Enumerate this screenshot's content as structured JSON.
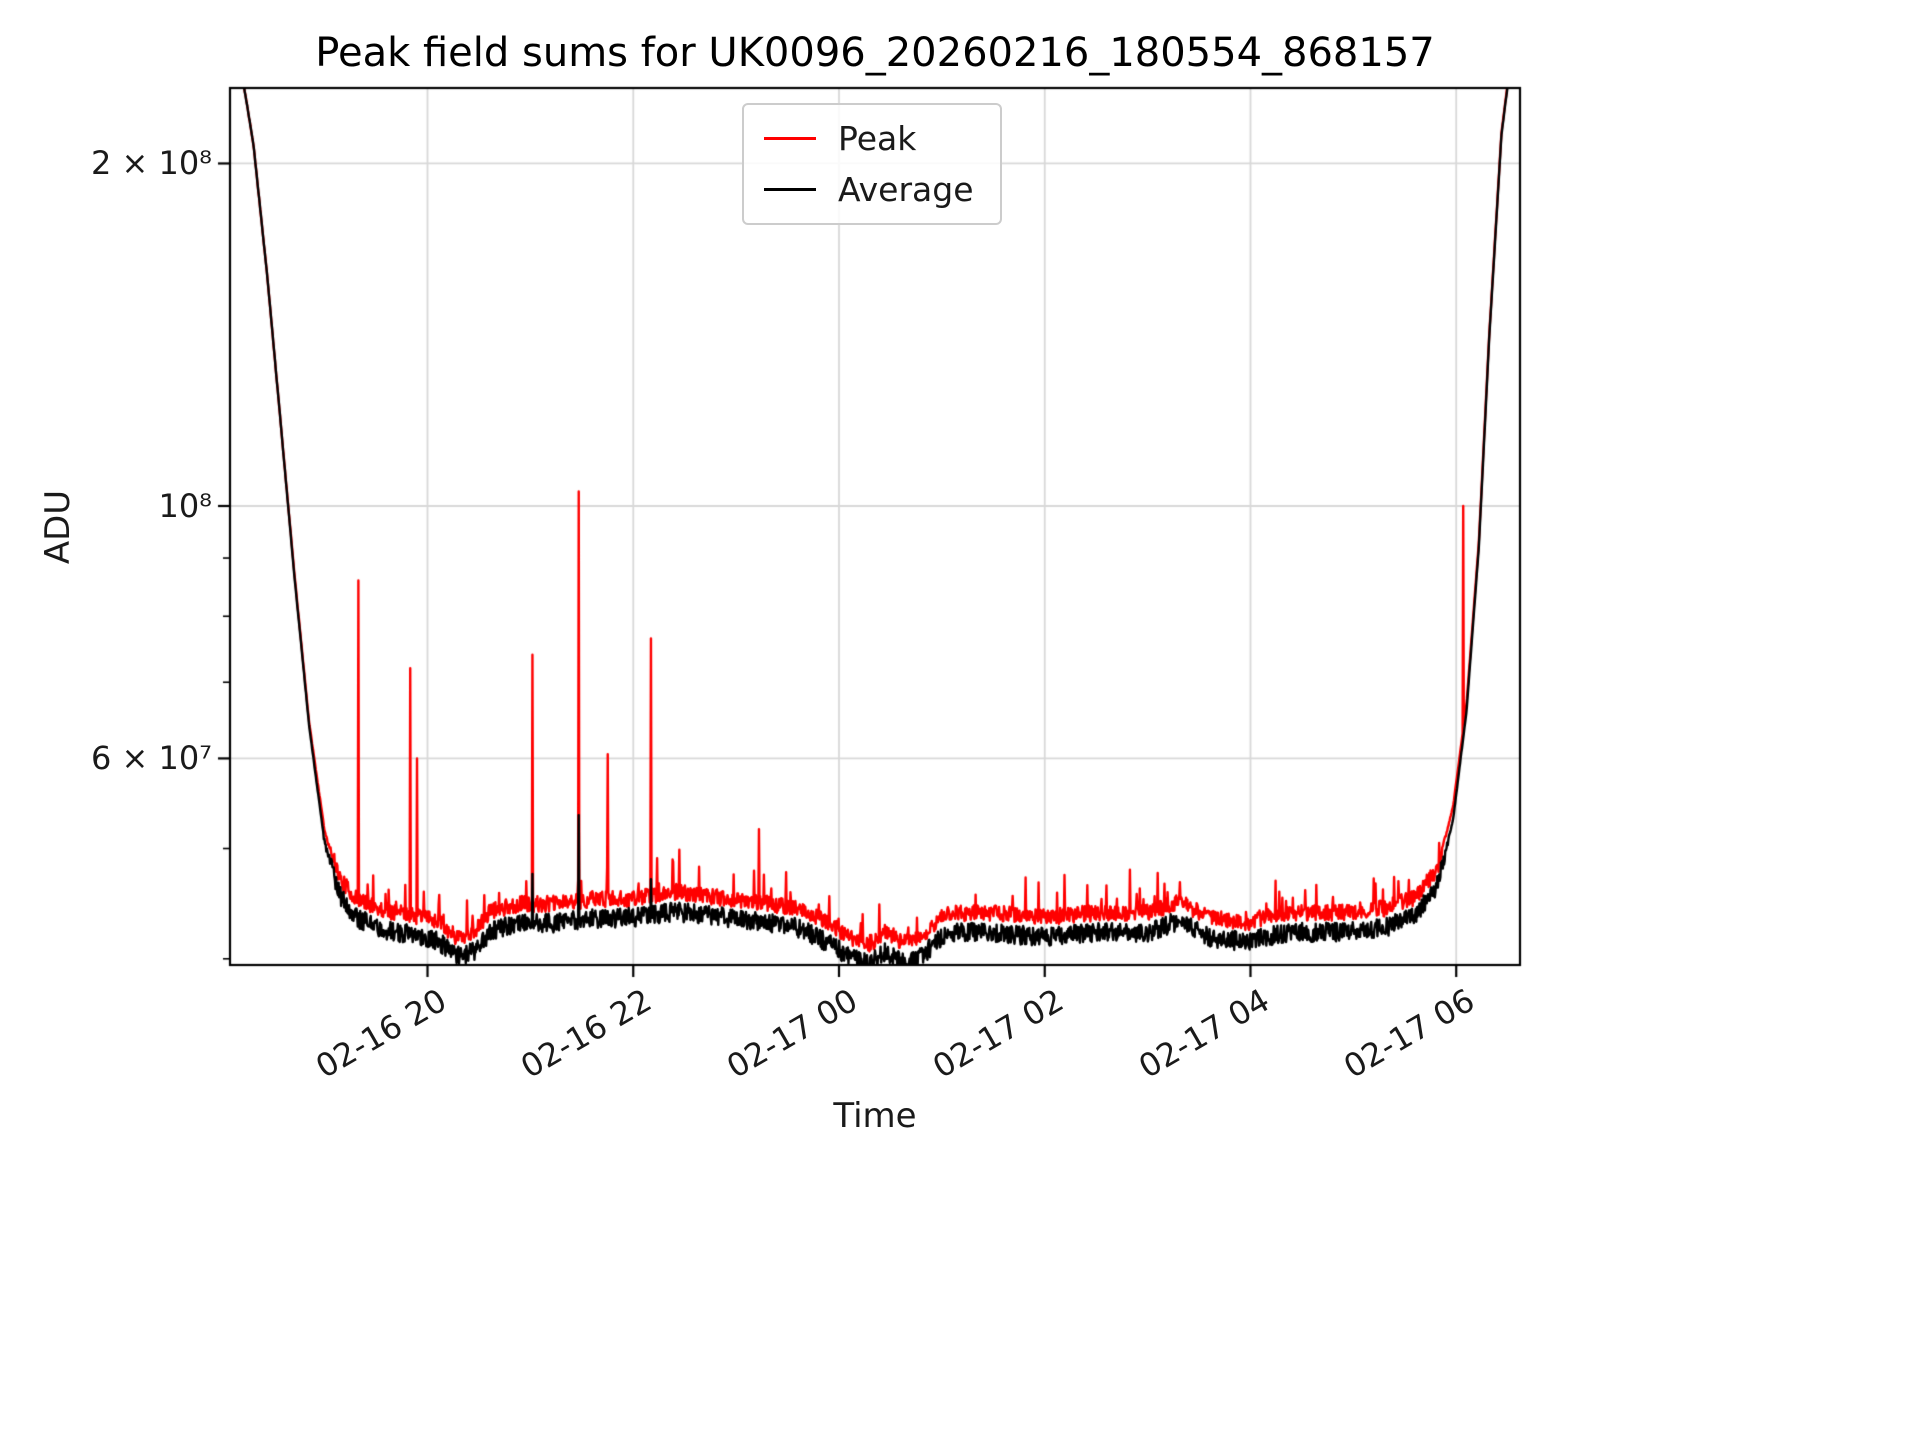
{
  "chart_data": {
    "type": "line",
    "title": "Peak field sums for UK0096_20260216_180554_868157",
    "xlabel": "Time",
    "ylabel": "ADU",
    "yscale": "log",
    "grid": true,
    "x_encoding": "hours since 02-16 00:00",
    "xlim_hours": [
      18.08,
      30.62
    ],
    "ylim": [
      39500000,
      233000000
    ],
    "xticks": [
      {
        "hours": 20,
        "label": "02-16 20"
      },
      {
        "hours": 22,
        "label": "02-16 22"
      },
      {
        "hours": 24,
        "label": "02-17 00"
      },
      {
        "hours": 26,
        "label": "02-17 02"
      },
      {
        "hours": 28,
        "label": "02-17 04"
      },
      {
        "hours": 30,
        "label": "02-17 06"
      }
    ],
    "yticks": [
      {
        "value": 60000000,
        "label": "6 × 10⁷"
      },
      {
        "value": 100000000,
        "label": "10⁸"
      },
      {
        "value": 200000000,
        "label": "2 × 10⁸"
      }
    ],
    "yticks_minor": [
      40000000,
      50000000,
      70000000,
      80000000,
      90000000
    ],
    "legend": {
      "position": "upper center",
      "entries": [
        {
          "label": "Peak",
          "color": "#ff0000"
        },
        {
          "label": "Average",
          "color": "#000000"
        }
      ]
    },
    "colors": {
      "peak": "#ff0000",
      "average": "#000000",
      "grid": "#d8d8d8",
      "spine": "#000000"
    },
    "series": [
      {
        "name": "Peak",
        "color": "#ff0000",
        "noise": 0.015,
        "up_jitter": {
          "p": 0.05,
          "max": 0.08
        },
        "keypoints": [
          [
            18.08,
            245000000
          ],
          [
            18.2,
            238000000
          ],
          [
            18.25,
            224000000
          ],
          [
            18.31,
            207000000
          ],
          [
            18.44,
            160000000
          ],
          [
            18.57,
            119000000
          ],
          [
            18.71,
            86500000
          ],
          [
            18.85,
            64500000
          ],
          [
            19.0,
            51800000
          ],
          [
            19.15,
            47000000
          ],
          [
            19.3,
            45200000
          ],
          [
            19.55,
            44200000
          ],
          [
            19.85,
            43700000
          ],
          [
            20.1,
            43200000
          ],
          [
            20.28,
            41800000
          ],
          [
            20.45,
            42200000
          ],
          [
            20.62,
            44100000
          ],
          [
            20.9,
            44700000
          ],
          [
            21.2,
            44700000
          ],
          [
            21.6,
            45100000
          ],
          [
            22.0,
            45200000
          ],
          [
            22.4,
            45800000
          ],
          [
            22.8,
            45300000
          ],
          [
            23.2,
            44900000
          ],
          [
            23.6,
            44300000
          ],
          [
            23.9,
            43000000
          ],
          [
            24.1,
            41800000
          ],
          [
            24.3,
            41200000
          ],
          [
            24.45,
            42200000
          ],
          [
            24.62,
            41300000
          ],
          [
            24.8,
            41800000
          ],
          [
            25.05,
            43900000
          ],
          [
            25.5,
            43900000
          ],
          [
            26.0,
            43500000
          ],
          [
            26.5,
            43900000
          ],
          [
            27.0,
            43900000
          ],
          [
            27.3,
            44900000
          ],
          [
            27.6,
            43500000
          ],
          [
            27.95,
            43000000
          ],
          [
            28.35,
            43900000
          ],
          [
            28.8,
            43900000
          ],
          [
            29.3,
            44300000
          ],
          [
            29.6,
            45300000
          ],
          [
            29.82,
            48000000
          ],
          [
            29.97,
            54500000
          ],
          [
            30.1,
            67000000
          ],
          [
            30.22,
            93000000
          ],
          [
            30.32,
            141000000
          ],
          [
            30.44,
            213000000
          ],
          [
            30.52,
            243000000
          ],
          [
            30.62,
            247000000
          ]
        ],
        "spikes": [
          [
            19.33,
            86000000
          ],
          [
            19.42,
            46500000
          ],
          [
            19.62,
            46000000
          ],
          [
            19.83,
            72000000
          ],
          [
            19.9,
            60000000
          ],
          [
            20.55,
            45500000
          ],
          [
            21.02,
            74000000
          ],
          [
            21.47,
            103000000
          ],
          [
            21.75,
            60500000
          ],
          [
            22.17,
            76500000
          ],
          [
            23.22,
            52000000
          ],
          [
            30.07,
            100000000
          ]
        ]
      },
      {
        "name": "Average",
        "color": "#000000",
        "noise": 0.018,
        "keypoints": [
          [
            18.08,
            245000000
          ],
          [
            18.2,
            238000000
          ],
          [
            18.25,
            224000000
          ],
          [
            18.31,
            207000000
          ],
          [
            18.44,
            160000000
          ],
          [
            18.57,
            119000000
          ],
          [
            18.71,
            86000000
          ],
          [
            18.85,
            64000000
          ],
          [
            19.0,
            50500000
          ],
          [
            19.15,
            45500000
          ],
          [
            19.3,
            43500000
          ],
          [
            19.55,
            42500000
          ],
          [
            19.85,
            42000000
          ],
          [
            20.1,
            41500000
          ],
          [
            20.28,
            40200000
          ],
          [
            20.45,
            40600000
          ],
          [
            20.62,
            42400000
          ],
          [
            20.9,
            43000000
          ],
          [
            21.2,
            43000000
          ],
          [
            21.6,
            43400000
          ],
          [
            22.0,
            43500000
          ],
          [
            22.4,
            44000000
          ],
          [
            22.8,
            43600000
          ],
          [
            23.2,
            43200000
          ],
          [
            23.6,
            42600000
          ],
          [
            23.9,
            41300000
          ],
          [
            24.1,
            40200000
          ],
          [
            24.3,
            39600000
          ],
          [
            24.45,
            40600000
          ],
          [
            24.62,
            39700000
          ],
          [
            24.8,
            40200000
          ],
          [
            25.05,
            42200000
          ],
          [
            25.5,
            42200000
          ],
          [
            26.0,
            41800000
          ],
          [
            26.5,
            42200000
          ],
          [
            27.0,
            42200000
          ],
          [
            27.3,
            43200000
          ],
          [
            27.6,
            41800000
          ],
          [
            27.95,
            41400000
          ],
          [
            28.35,
            42200000
          ],
          [
            28.8,
            42200000
          ],
          [
            29.3,
            42600000
          ],
          [
            29.6,
            43600000
          ],
          [
            29.82,
            46500000
          ],
          [
            29.97,
            53000000
          ],
          [
            30.1,
            66000000
          ],
          [
            30.22,
            92000000
          ],
          [
            30.32,
            140000000
          ],
          [
            30.44,
            212000000
          ],
          [
            30.52,
            242000000
          ],
          [
            30.62,
            246000000
          ]
        ],
        "spikes": [
          [
            21.02,
            47500000
          ],
          [
            21.47,
            53500000
          ],
          [
            22.17,
            47000000
          ]
        ]
      }
    ]
  }
}
